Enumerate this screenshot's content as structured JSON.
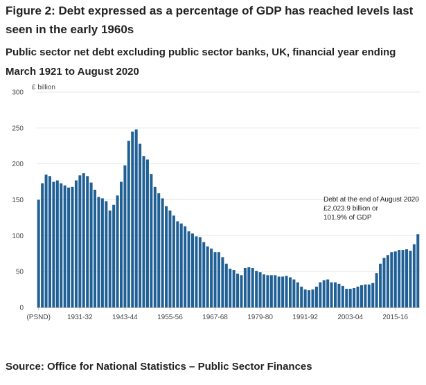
{
  "header": {
    "title": "Figure 2: Debt expressed as a percentage of GDP has reached levels last seen in the early 1960s",
    "subtitle": "Public sector net debt excluding public sector banks, UK, financial year ending March 1921 to August 2020"
  },
  "footer": {
    "source": "Source: Office for National Statistics – Public Sector Finances"
  },
  "chart_data": {
    "type": "bar",
    "title": "Public sector net debt excluding public sector banks, UK, financial year ending March 1921 to August 2020",
    "ylabel": "£ billion",
    "ylim": [
      0,
      300
    ],
    "yticks": [
      0,
      50,
      100,
      150,
      200,
      250,
      300
    ],
    "xtick_labels": [
      {
        "index": 0,
        "label": "(PSND)"
      },
      {
        "index": 11,
        "label": "1931-32"
      },
      {
        "index": 23,
        "label": "1943-44"
      },
      {
        "index": 35,
        "label": "1955-56"
      },
      {
        "index": 47,
        "label": "1967-68"
      },
      {
        "index": 59,
        "label": "1979-80"
      },
      {
        "index": 71,
        "label": "1991-92"
      },
      {
        "index": 83,
        "label": "2003-04"
      },
      {
        "index": 95,
        "label": "2015-16"
      }
    ],
    "bar_color": "#206095",
    "gridlines": true,
    "values": [
      150,
      173,
      185,
      183,
      175,
      177,
      173,
      170,
      167,
      168,
      177,
      184,
      187,
      183,
      174,
      164,
      154,
      152,
      148,
      135,
      143,
      156,
      175,
      198,
      232,
      245,
      248,
      228,
      211,
      206,
      186,
      168,
      159,
      152,
      141,
      135,
      128,
      120,
      117,
      113,
      106,
      103,
      99,
      98,
      91,
      85,
      82,
      77,
      77,
      70,
      61,
      54,
      52,
      47,
      45,
      55,
      56,
      55,
      51,
      49,
      46,
      45,
      45,
      45,
      43,
      43,
      44,
      42,
      39,
      35,
      29,
      25,
      24,
      25,
      29,
      35,
      38,
      39,
      35,
      35,
      33,
      30,
      26,
      26,
      27,
      29,
      31,
      32,
      32,
      34,
      48,
      61,
      69,
      73,
      77,
      78,
      80,
      80,
      81,
      79,
      88,
      102
    ],
    "annotation": {
      "bar_index": 101,
      "lines": [
        "Debt at the end of August 2020",
        "£2,023.9 billion or",
        "101.9% of GDP"
      ]
    }
  }
}
